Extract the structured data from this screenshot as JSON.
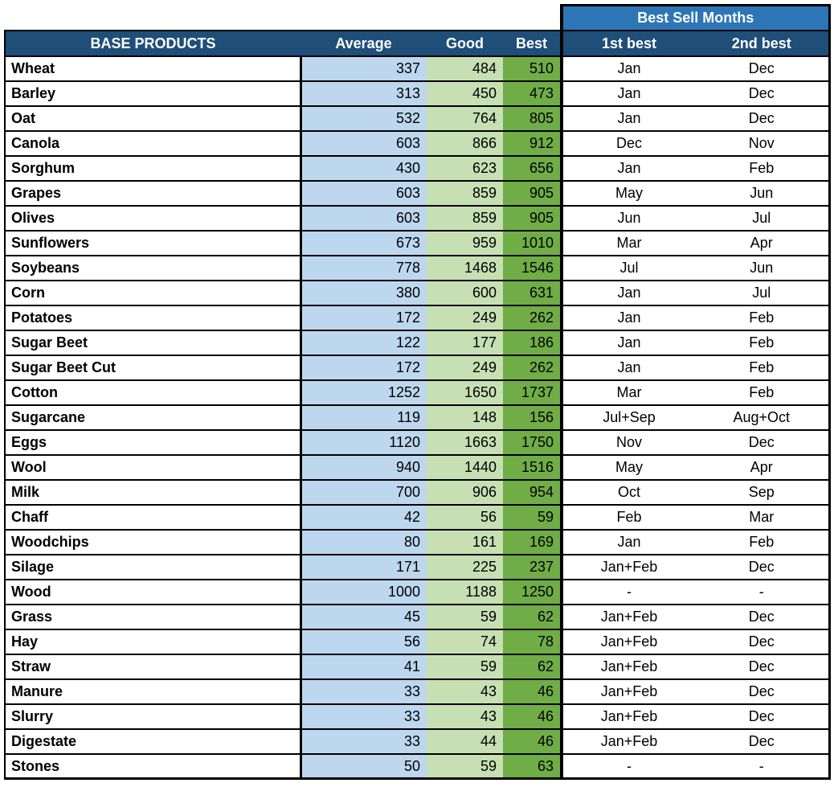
{
  "colors": {
    "header_navy": "#1F4E79",
    "group_header_blue": "#2E75B6",
    "average_fill": "#BDD7EE",
    "good_fill": "#C6E0B4",
    "best_fill": "#70AD47",
    "border": "#000000",
    "header_text": "#FFFFFF",
    "body_text": "#000000"
  },
  "chart_data": {
    "type": "table",
    "group_header": {
      "label": "Best Sell Months",
      "spans_columns": [
        "1st best",
        "2nd best"
      ]
    },
    "columns": [
      "BASE PRODUCTS",
      "Average",
      "Good",
      "Best",
      "1st best",
      "2nd best"
    ],
    "rows": [
      [
        "Wheat",
        337,
        484,
        510,
        "Jan",
        "Dec"
      ],
      [
        "Barley",
        313,
        450,
        473,
        "Jan",
        "Dec"
      ],
      [
        "Oat",
        532,
        764,
        805,
        "Jan",
        "Dec"
      ],
      [
        "Canola",
        603,
        866,
        912,
        "Dec",
        "Nov"
      ],
      [
        "Sorghum",
        430,
        623,
        656,
        "Jan",
        "Feb"
      ],
      [
        "Grapes",
        603,
        859,
        905,
        "May",
        "Jun"
      ],
      [
        "Olives",
        603,
        859,
        905,
        "Jun",
        "Jul"
      ],
      [
        "Sunflowers",
        673,
        959,
        1010,
        "Mar",
        "Apr"
      ],
      [
        "Soybeans",
        778,
        1468,
        1546,
        "Jul",
        "Jun"
      ],
      [
        "Corn",
        380,
        600,
        631,
        "Jan",
        "Jul"
      ],
      [
        "Potatoes",
        172,
        249,
        262,
        "Jan",
        "Feb"
      ],
      [
        "Sugar Beet",
        122,
        177,
        186,
        "Jan",
        "Feb"
      ],
      [
        "Sugar Beet Cut",
        172,
        249,
        262,
        "Jan",
        "Feb"
      ],
      [
        "Cotton",
        1252,
        1650,
        1737,
        "Mar",
        "Feb"
      ],
      [
        "Sugarcane",
        119,
        148,
        156,
        "Jul+Sep",
        "Aug+Oct"
      ],
      [
        "Eggs",
        1120,
        1663,
        1750,
        "Nov",
        "Dec"
      ],
      [
        "Wool",
        940,
        1440,
        1516,
        "May",
        "Apr"
      ],
      [
        "Milk",
        700,
        906,
        954,
        "Oct",
        "Sep"
      ],
      [
        "Chaff",
        42,
        56,
        59,
        "Feb",
        "Mar"
      ],
      [
        "Woodchips",
        80,
        161,
        169,
        "Jan",
        "Feb"
      ],
      [
        "Silage",
        171,
        225,
        237,
        "Jan+Feb",
        "Dec"
      ],
      [
        "Wood",
        1000,
        1188,
        1250,
        "-",
        "-"
      ],
      [
        "Grass",
        45,
        59,
        62,
        "Jan+Feb",
        "Dec"
      ],
      [
        "Hay",
        56,
        74,
        78,
        "Jan+Feb",
        "Dec"
      ],
      [
        "Straw",
        41,
        59,
        62,
        "Jan+Feb",
        "Dec"
      ],
      [
        "Manure",
        33,
        43,
        46,
        "Jan+Feb",
        "Dec"
      ],
      [
        "Slurry",
        33,
        43,
        46,
        "Jan+Feb",
        "Dec"
      ],
      [
        "Digestate",
        33,
        44,
        46,
        "Jan+Feb",
        "Dec"
      ],
      [
        "Stones",
        50,
        59,
        63,
        "-",
        "-"
      ]
    ]
  }
}
